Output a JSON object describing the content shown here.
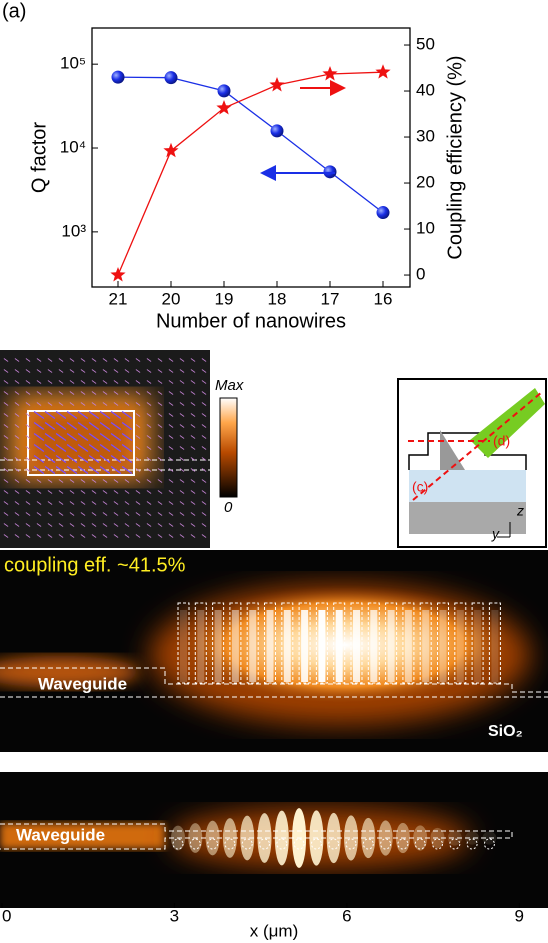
{
  "chart_data": {
    "type": "line",
    "panel_label": "(a)",
    "categories": [
      "21",
      "20",
      "19",
      "18",
      "17",
      "16"
    ],
    "x_label": "Number of nanowires",
    "y_label": "Q factor",
    "y2_label": "Coupling efficiency (%)",
    "ylog": true,
    "ylim": [
      220,
      270000
    ],
    "yticks": [
      {
        "value": 1000,
        "label": "10³"
      },
      {
        "value": 10000,
        "label": "10⁴"
      },
      {
        "value": 100000,
        "label": "10⁵"
      }
    ],
    "y2lim": [
      -2.6,
      53.7
    ],
    "y2ticks": [
      0,
      10,
      20,
      30,
      40,
      50
    ],
    "series": [
      {
        "color": "#1a2fe6",
        "marker": "circle",
        "values": [
          70000,
          69000,
          48000,
          16000,
          5200,
          1700
        ]
      },
      {
        "color": "#ee1111",
        "marker": "star",
        "axis": "y2",
        "values": [
          0,
          27,
          36.3,
          41.3,
          43.7,
          44.1
        ]
      }
    ]
  },
  "field_map": {
    "colorbar_max": "Max",
    "colorbar_min": "0"
  },
  "inset": {
    "label_d": "(d)",
    "label_c": "(c)",
    "axis_z": "z",
    "axis_y": "y"
  },
  "field_profile_side": {
    "annotation": "coupling eff. ~41.5%",
    "waveguide_label": "Waveguide",
    "substrate_label": "SiO₂"
  },
  "field_profile_bottom": {
    "waveguide_label": "Waveguide",
    "xlim": [
      0,
      9.5
    ],
    "xticks": [
      0,
      3,
      6,
      9
    ],
    "x_label": "x (μm)"
  }
}
